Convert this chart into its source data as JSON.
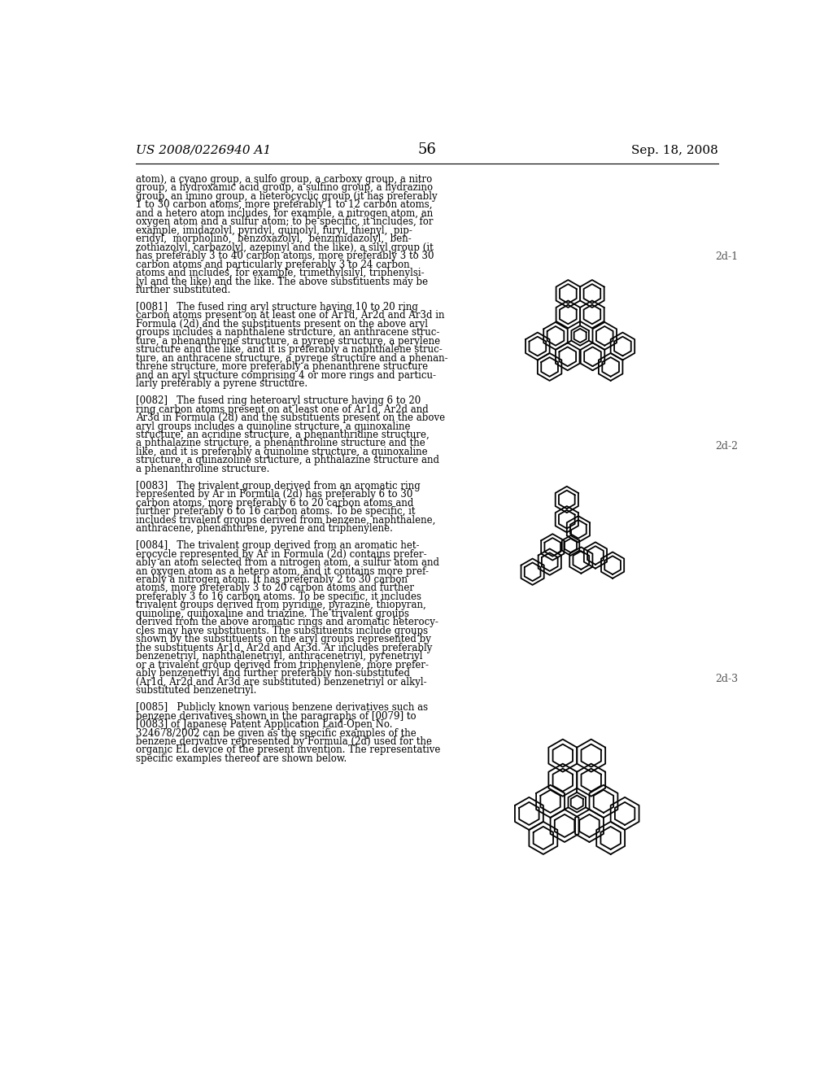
{
  "bg_color": "#ffffff",
  "text_color": "#000000",
  "header_left": "US 2008/0226940 A1",
  "header_right": "Sep. 18, 2008",
  "page_number": "56",
  "label_2d1": "2d-1",
  "label_2d2": "2d-2",
  "label_2d3": "2d-3",
  "lw": 1.3,
  "ring_color": "#000000",
  "inner_ratio": 0.7,
  "text_lines": [
    "atom), a cyano group, a sulfo group, a carboxy group, a nitro",
    "group, a hydroxamic acid group, a sulfino group, a hydrazino",
    "group, an imino group, a heterocyclic group (it has preferably",
    "1 to 30 carbon atoms, more preferably 1 to 12 carbon atoms,",
    "and a hetero atom includes, for example, a nitrogen atom, an",
    "oxygen atom and a sulfur atom; to be specific, it includes, for",
    "example, imidazolyl, pyridyl, quinolyl, furyl, thienyl,  pip-",
    "eridyl,  morpholino,  benzoxazolyl,  benzimidazolyl,  ben-",
    "zothiazolyl, carbazolyl, azepinyl and the like), a silyl group (it",
    "has preferably 3 to 40 carbon atoms, more preferably 3 to 30",
    "carbon atoms and particularly preferably 3 to 24 carbon",
    "atoms and includes, for example, trimethylsilyl, triphenylsi-",
    "lyl and the like) and the like. The above substituents may be",
    "further substituted.",
    "",
    "[0081]   The fused ring aryl structure having 10 to 20 ring",
    "carbon atoms present on at least one of Ar1d, Ar2d and Ar3d in",
    "Formula (2d) and the substituents present on the above aryl",
    "groups includes a naphthalene structure, an anthracene struc-",
    "ture, a phenanthrene structure, a pyrene structure, a perylene",
    "structure and the like, and it is preferably a naphthalene struc-",
    "ture, an anthracene structure, a pyrene structure and a phenan-",
    "threne structure, more preferably a phenanthrene structure",
    "and an aryl structure comprising 4 or more rings and particu-",
    "larly preferably a pyrene structure.",
    "",
    "[0082]   The fused ring heteroaryl structure having 6 to 20",
    "ring carbon atoms present on at least one of Ar1d, Ar2d and",
    "Ar3d in Formula (2d) and the substituents present on the above",
    "aryl groups includes a quinoline structure, a quinoxaline",
    "structure, an acridine structure, a phenanthridine structure,",
    "a phthalazine structure, a phenanthroline structure and the",
    "like, and it is preferably a quinoline structure, a quinoxaline",
    "structure, a quinazoline structure, a phthalazine structure and",
    "a phenanthroline structure.",
    "",
    "[0083]   The trivalent group derived from an aromatic ring",
    "represented by Ar in Formula (2d) has preferably 6 to 30",
    "carbon atoms, more preferably 6 to 20 carbon atoms and",
    "further preferably 6 to 16 carbon atoms. To be specific, it",
    "includes trivalent groups derived from benzene, naphthalene,",
    "anthracene, phenanthrene, pyrene and triphenylene.",
    "",
    "[0084]   The trivalent group derived from an aromatic het-",
    "erocycle represented by Ar in Formula (2d) contains prefer-",
    "ably an atom selected from a nitrogen atom, a sulfur atom and",
    "an oxygen atom as a hetero atom, and it contains more pref-",
    "erably a nitrogen atom. It has preferably 2 to 30 carbon",
    "atoms, more preferably 3 to 20 carbon atoms and further",
    "preferably 3 to 16 carbon atoms. To be specific, it includes",
    "trivalent groups derived from pyridine, pyrazine, thiopyran,",
    "quinoline, quinoxaline and triazine. The trivalent groups",
    "derived from the above aromatic rings and aromatic heterocy-",
    "cles may have substituents. The substituents include groups",
    "shown by the substituents on the aryl groups represented by",
    "the substituents Ar1d, Ar2d and Ar3d. Ar includes preferably",
    "benzenetriyl, naphthalenetriyl, anthracenetriyl, pyrenetriyl",
    "or a trivalent group derived from triphenylene, more prefer-",
    "ably benzenetriyl and further preferably non-substituted",
    "(Ar1d, Ar2d and Ar3d are substituted) benzenetriyl or alkyl-",
    "substituted benzenetriyl.",
    "",
    "[0085]   Publicly known various benzene derivatives such as",
    "benzene derivatives shown in the paragraphs of [0079] to",
    "[0083] of Japanese Patent Application Laid-Open No.",
    "324678/2002 can be given as the specific examples of the",
    "benzene derivative represented by Formula (2d) used for the",
    "organic EL device of the present invention. The representative",
    "specific examples thereof are shown below."
  ]
}
